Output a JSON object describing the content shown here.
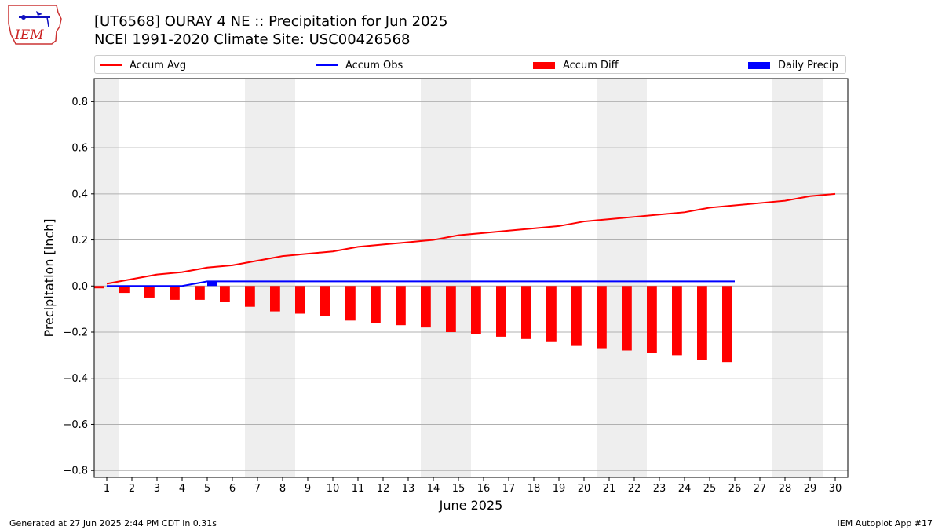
{
  "title": "[UT6568] OURAY 4 NE :: Precipitation for Jun 2025",
  "subtitle": "NCEI 1991-2020 Climate Site: USC00426568",
  "logo_text": "IEM",
  "footer_left": "Generated at 27 Jun 2025 2:44 PM CDT in 0.31s",
  "footer_right": "IEM Autoplot App #17",
  "colors": {
    "avg": "#ff0000",
    "obs": "#0000ff",
    "diff": "#ff0000",
    "daily": "#0000ff",
    "weekend": "#eeeeee",
    "grid": "#b0b0b0"
  },
  "chart_data": {
    "type": "bar",
    "xlabel": "June 2025",
    "ylabel": "Precipitation [inch]",
    "xlim": [
      0.5,
      30.5
    ],
    "ylim": [
      -0.83,
      0.9
    ],
    "y_ticks": [
      0.8,
      0.6,
      0.4,
      0.2,
      0.0,
      -0.2,
      -0.4,
      -0.6,
      -0.8
    ],
    "y_tick_labels": [
      "0.8",
      "0.6",
      "0.4",
      "0.2",
      "0.0",
      "−0.2",
      "−0.4",
      "−0.6",
      "−0.8"
    ],
    "x_ticks": [
      1,
      2,
      3,
      4,
      5,
      6,
      7,
      8,
      9,
      10,
      11,
      12,
      13,
      14,
      15,
      16,
      17,
      18,
      19,
      20,
      21,
      22,
      23,
      24,
      25,
      26,
      27,
      28,
      29,
      30
    ],
    "grid": "y-axis on",
    "legend_position": "top",
    "weekend_days": [
      1,
      7,
      8,
      14,
      15,
      21,
      22,
      28,
      29
    ],
    "series": [
      {
        "name": "Accum Avg",
        "kind": "line",
        "days": [
          1,
          2,
          3,
          4,
          5,
          6,
          7,
          8,
          9,
          10,
          11,
          12,
          13,
          14,
          15,
          16,
          17,
          18,
          19,
          20,
          21,
          22,
          23,
          24,
          25,
          26,
          27,
          28,
          29,
          30
        ],
        "values": [
          0.01,
          0.03,
          0.05,
          0.06,
          0.08,
          0.09,
          0.11,
          0.13,
          0.14,
          0.15,
          0.17,
          0.18,
          0.19,
          0.2,
          0.22,
          0.23,
          0.24,
          0.25,
          0.26,
          0.28,
          0.29,
          0.3,
          0.31,
          0.32,
          0.34,
          0.35,
          0.36,
          0.37,
          0.39,
          0.4
        ]
      },
      {
        "name": "Accum Obs",
        "kind": "line",
        "days": [
          1,
          2,
          3,
          4,
          5,
          6,
          7,
          8,
          9,
          10,
          11,
          12,
          13,
          14,
          15,
          16,
          17,
          18,
          19,
          20,
          21,
          22,
          23,
          24,
          25,
          26
        ],
        "values": [
          0,
          0,
          0,
          0,
          0.02,
          0.02,
          0.02,
          0.02,
          0.02,
          0.02,
          0.02,
          0.02,
          0.02,
          0.02,
          0.02,
          0.02,
          0.02,
          0.02,
          0.02,
          0.02,
          0.02,
          0.02,
          0.02,
          0.02,
          0.02,
          0.02
        ]
      },
      {
        "name": "Accum Diff",
        "kind": "bar",
        "days": [
          1,
          2,
          3,
          4,
          5,
          6,
          7,
          8,
          9,
          10,
          11,
          12,
          13,
          14,
          15,
          16,
          17,
          18,
          19,
          20,
          21,
          22,
          23,
          24,
          25,
          26
        ],
        "values": [
          -0.01,
          -0.03,
          -0.05,
          -0.06,
          -0.06,
          -0.07,
          -0.09,
          -0.11,
          -0.12,
          -0.13,
          -0.15,
          -0.16,
          -0.17,
          -0.18,
          -0.2,
          -0.21,
          -0.22,
          -0.23,
          -0.24,
          -0.26,
          -0.27,
          -0.28,
          -0.29,
          -0.3,
          -0.32,
          -0.33
        ]
      },
      {
        "name": "Daily Precip",
        "kind": "bar",
        "days": [
          1,
          2,
          3,
          4,
          5,
          6,
          7,
          8,
          9,
          10,
          11,
          12,
          13,
          14,
          15,
          16,
          17,
          18,
          19,
          20,
          21,
          22,
          23,
          24,
          25,
          26
        ],
        "values": [
          0,
          0,
          0,
          0,
          0.02,
          0,
          0,
          0,
          0,
          0,
          0,
          0,
          0,
          0,
          0,
          0,
          0,
          0,
          0,
          0,
          0,
          0,
          0,
          0,
          0,
          0
        ]
      }
    ]
  }
}
